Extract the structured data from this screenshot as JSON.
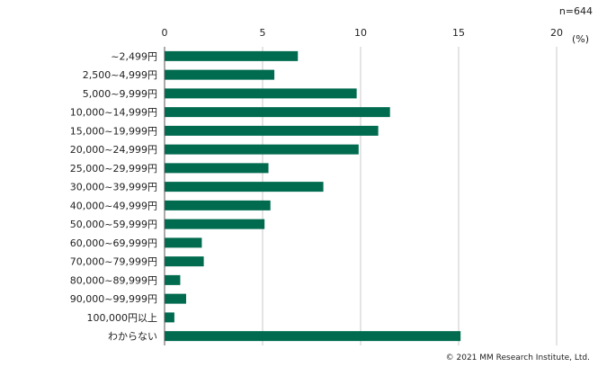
{
  "chart_data": {
    "type": "bar",
    "orientation": "horizontal",
    "categories": [
      "~2,499円",
      "2,500~4,999円",
      "5,000~9,999円",
      "10,000~14,999円",
      "15,000~19,999円",
      "20,000~24,999円",
      "25,000~29,999円",
      "30,000~39,999円",
      "40,000~49,999円",
      "50,000~59,999円",
      "60,000~69,999円",
      "70,000~79,999円",
      "80,000~89,999円",
      "90,000~99,999円",
      "100,000円以上",
      "わからない"
    ],
    "values": [
      6.8,
      5.6,
      9.8,
      11.5,
      10.9,
      9.9,
      5.3,
      8.1,
      5.4,
      5.1,
      1.9,
      2.0,
      0.8,
      1.1,
      0.5,
      15.1
    ],
    "xlim": [
      0,
      20
    ],
    "xticks": [
      "0",
      "5",
      "10",
      "15",
      "20"
    ],
    "xlabel": "",
    "ylabel": "",
    "grid": "vertical",
    "color": "#006b4f",
    "sample_size": "n=644",
    "unit": "(%)",
    "copyright": "© 2021 MM Research Institute, Ltd."
  }
}
